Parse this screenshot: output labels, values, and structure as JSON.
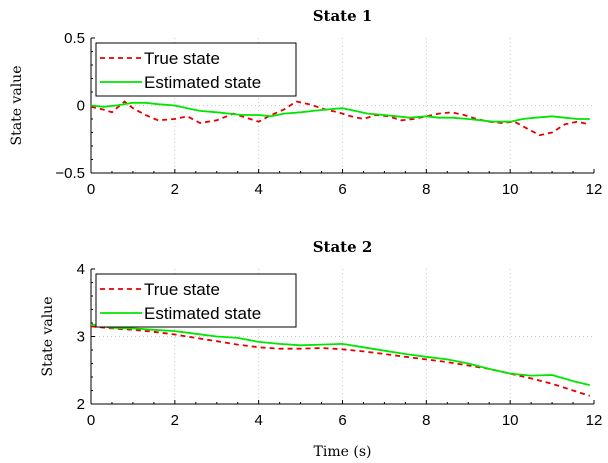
{
  "chart_data": [
    {
      "type": "line",
      "title": "State 1",
      "xlabel": "",
      "ylabel": "State value",
      "xlim": [
        0,
        12
      ],
      "ylim": [
        -0.5,
        0.5
      ],
      "xticks": [
        0,
        2,
        4,
        6,
        8,
        10,
        12
      ],
      "yticks": [
        -0.5,
        0,
        0.5
      ],
      "ytick_labels": [
        "−0.5",
        "0",
        "0.5"
      ],
      "grid": true,
      "legend_position": "top-left",
      "series": [
        {
          "name": "True state",
          "color": "#e60000",
          "dashed": true,
          "x": [
            0,
            0.3,
            0.5,
            0.8,
            1.0,
            1.3,
            1.6,
            2.0,
            2.3,
            2.6,
            3.0,
            3.4,
            3.7,
            4.0,
            4.3,
            4.6,
            4.9,
            5.2,
            5.6,
            5.9,
            6.2,
            6.5,
            6.8,
            7.1,
            7.4,
            7.7,
            8.0,
            8.3,
            8.6,
            8.9,
            9.2,
            9.5,
            9.8,
            10.1,
            10.4,
            10.7,
            11.0,
            11.3,
            11.6,
            11.9
          ],
          "y": [
            -0.01,
            -0.03,
            -0.05,
            0.03,
            -0.02,
            -0.07,
            -0.11,
            -0.1,
            -0.08,
            -0.13,
            -0.11,
            -0.06,
            -0.09,
            -0.12,
            -0.07,
            -0.03,
            0.03,
            0.01,
            -0.03,
            -0.05,
            -0.08,
            -0.1,
            -0.07,
            -0.08,
            -0.11,
            -0.1,
            -0.08,
            -0.06,
            -0.05,
            -0.07,
            -0.1,
            -0.12,
            -0.13,
            -0.12,
            -0.17,
            -0.22,
            -0.2,
            -0.14,
            -0.12,
            -0.14
          ]
        },
        {
          "name": "Estimated state",
          "color": "#00e600",
          "dashed": false,
          "x": [
            0,
            0.3,
            0.6,
            1.0,
            1.3,
            1.6,
            2.0,
            2.3,
            2.6,
            3.0,
            3.3,
            3.6,
            4.0,
            4.3,
            4.6,
            5.0,
            5.3,
            5.6,
            6.0,
            6.3,
            6.6,
            7.0,
            7.3,
            7.6,
            8.0,
            8.3,
            8.6,
            9.0,
            9.3,
            9.6,
            10.0,
            10.3,
            10.6,
            11.0,
            11.3,
            11.6,
            11.9
          ],
          "y": [
            0.0,
            -0.01,
            0.0,
            0.02,
            0.02,
            0.01,
            0.0,
            -0.02,
            -0.04,
            -0.05,
            -0.06,
            -0.07,
            -0.07,
            -0.08,
            -0.06,
            -0.05,
            -0.04,
            -0.03,
            -0.02,
            -0.04,
            -0.06,
            -0.07,
            -0.08,
            -0.09,
            -0.08,
            -0.09,
            -0.09,
            -0.1,
            -0.11,
            -0.12,
            -0.12,
            -0.1,
            -0.09,
            -0.08,
            -0.09,
            -0.1,
            -0.1
          ]
        }
      ]
    },
    {
      "type": "line",
      "title": "State 2",
      "xlabel": "Time (s)",
      "ylabel": "State value",
      "xlim": [
        0,
        12
      ],
      "ylim": [
        2,
        4
      ],
      "xticks": [
        0,
        2,
        4,
        6,
        8,
        10,
        12
      ],
      "yticks": [
        2,
        3,
        4
      ],
      "ytick_labels": [
        "2",
        "3",
        "4"
      ],
      "grid": true,
      "legend_position": "top-left",
      "series": [
        {
          "name": "True state",
          "color": "#e60000",
          "dashed": true,
          "x": [
            0,
            0.5,
            1.0,
            1.5,
            2.0,
            2.5,
            3.0,
            3.5,
            4.0,
            4.5,
            5.0,
            5.5,
            6.0,
            6.5,
            7.0,
            7.5,
            8.0,
            8.5,
            9.0,
            9.5,
            10.0,
            10.5,
            11.0,
            11.5,
            11.9
          ],
          "y": [
            3.15,
            3.12,
            3.1,
            3.07,
            3.03,
            2.98,
            2.93,
            2.88,
            2.84,
            2.82,
            2.82,
            2.83,
            2.81,
            2.78,
            2.74,
            2.7,
            2.66,
            2.62,
            2.57,
            2.52,
            2.45,
            2.38,
            2.3,
            2.2,
            2.12
          ]
        },
        {
          "name": "Estimated state",
          "color": "#00e600",
          "dashed": false,
          "x": [
            0,
            0.5,
            1.0,
            1.5,
            2.0,
            2.5,
            3.0,
            3.5,
            4.0,
            4.5,
            5.0,
            5.5,
            6.0,
            6.5,
            7.0,
            7.5,
            8.0,
            8.5,
            9.0,
            9.5,
            10.0,
            10.5,
            11.0,
            11.5,
            11.9
          ],
          "y": [
            3.18,
            3.13,
            3.12,
            3.1,
            3.08,
            3.04,
            3.0,
            2.98,
            2.92,
            2.89,
            2.87,
            2.88,
            2.89,
            2.84,
            2.79,
            2.74,
            2.7,
            2.66,
            2.6,
            2.52,
            2.45,
            2.42,
            2.43,
            2.34,
            2.28
          ]
        }
      ]
    }
  ]
}
